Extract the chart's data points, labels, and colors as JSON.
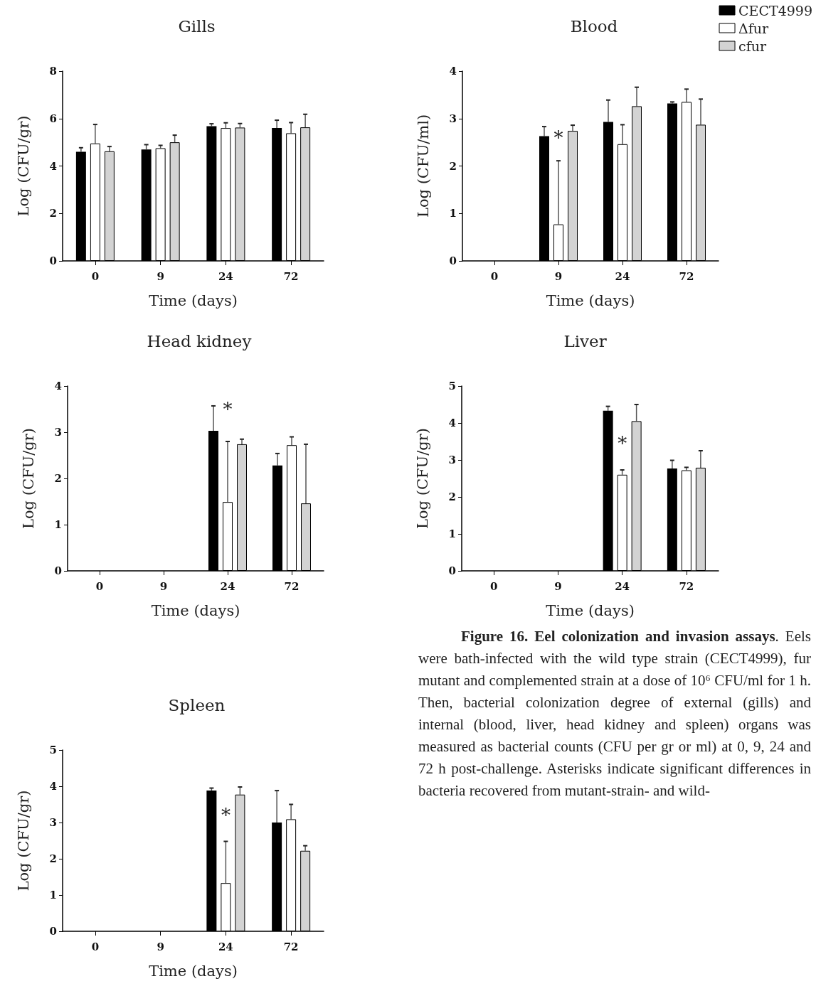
{
  "chart_data": [
    {
      "type": "bar",
      "title": "Gills",
      "xlabel": "Time (days)",
      "ylabel": "Log (CFU/gr)",
      "categories": [
        "0",
        "9",
        "24",
        "72"
      ],
      "ylim": [
        0,
        8
      ],
      "yticks": [
        0,
        2,
        4,
        6,
        8
      ],
      "grid": false,
      "legend": false,
      "series": [
        {
          "color": "#000000",
          "values": [
            4.6,
            4.7,
            5.68,
            5.6
          ],
          "errors": [
            [
              4.6,
              4.77
            ],
            [
              4.7,
              4.9
            ],
            [
              5.68,
              5.78
            ],
            [
              5.6,
              5.93
            ]
          ]
        },
        {
          "color": "#ffffff",
          "values": [
            4.95,
            4.75,
            5.6,
            5.38
          ],
          "errors": [
            [
              4.95,
              5.75
            ],
            [
              4.75,
              4.87
            ],
            [
              5.6,
              5.82
            ],
            [
              5.38,
              5.83
            ]
          ]
        },
        {
          "color": "#d3d3d3",
          "values": [
            4.62,
            5.0,
            5.62,
            5.63
          ],
          "errors": [
            [
              4.62,
              4.82
            ],
            [
              5.0,
              5.3
            ],
            [
              5.62,
              5.79
            ],
            [
              5.63,
              6.18
            ]
          ]
        }
      ]
    },
    {
      "type": "bar",
      "title": "Blood",
      "xlabel": "Time (days)",
      "ylabel": "Log (CFU/ml)",
      "categories": [
        "0",
        "9",
        "24",
        "72"
      ],
      "ylim": [
        0,
        4
      ],
      "yticks": [
        0,
        1,
        2,
        3,
        4
      ],
      "grid": false,
      "legend": "top right",
      "annotations": [
        "*"
      ],
      "series": [
        {
          "name": "CECT4999",
          "color": "#000000",
          "values": [
            null,
            2.63,
            2.93,
            3.32
          ],
          "errors": [
            null,
            [
              2.63,
              2.83
            ],
            [
              2.93,
              3.39
            ],
            [
              3.32,
              3.35
            ]
          ]
        },
        {
          "name": "Δfur",
          "color": "#ffffff",
          "values": [
            null,
            0.77,
            2.46,
            3.35
          ],
          "errors": [
            null,
            [
              0.77,
              2.11
            ],
            [
              2.46,
              2.87
            ],
            [
              3.35,
              3.62
            ]
          ]
        },
        {
          "name": "cfur",
          "color": "#d3d3d3",
          "values": [
            null,
            2.74,
            3.26,
            2.87
          ],
          "errors": [
            null,
            [
              2.74,
              2.86
            ],
            [
              3.26,
              3.66
            ],
            [
              2.87,
              3.41
            ]
          ]
        }
      ]
    },
    {
      "type": "bar",
      "title": "Head kidney",
      "xlabel": "Time (days)",
      "ylabel": "Log (CFU/gr)",
      "categories": [
        "0",
        "9",
        "24",
        "72"
      ],
      "ylim": [
        0,
        4
      ],
      "yticks": [
        0,
        1,
        2,
        3,
        4
      ],
      "grid": false,
      "legend": false,
      "annotations": [
        "*"
      ],
      "series": [
        {
          "color": "#000000",
          "values": [
            null,
            null,
            3.03,
            2.28
          ],
          "errors": [
            null,
            null,
            [
              3.03,
              3.57
            ],
            [
              2.28,
              2.54
            ]
          ]
        },
        {
          "color": "#ffffff",
          "values": [
            null,
            null,
            1.49,
            2.72
          ],
          "errors": [
            null,
            null,
            [
              1.49,
              2.8
            ],
            [
              2.72,
              2.9
            ]
          ]
        },
        {
          "color": "#d3d3d3",
          "values": [
            null,
            null,
            2.74,
            1.46
          ],
          "errors": [
            null,
            null,
            [
              2.74,
              2.85
            ],
            [
              1.46,
              2.74
            ]
          ]
        }
      ]
    },
    {
      "type": "bar",
      "title": "Liver",
      "xlabel": "Time (days)",
      "ylabel": "Log (CFU/gr)",
      "categories": [
        "0",
        "9",
        "24",
        "72"
      ],
      "ylim": [
        0,
        5
      ],
      "yticks": [
        0,
        1,
        2,
        3,
        4,
        5
      ],
      "grid": false,
      "legend": false,
      "annotations": [
        "*"
      ],
      "series": [
        {
          "color": "#000000",
          "values": [
            null,
            null,
            4.33,
            2.77
          ],
          "errors": [
            null,
            null,
            [
              4.33,
              4.45
            ],
            [
              2.77,
              2.99
            ]
          ]
        },
        {
          "color": "#ffffff",
          "values": [
            null,
            null,
            2.6,
            2.72
          ],
          "errors": [
            null,
            null,
            [
              2.6,
              2.73
            ],
            [
              2.72,
              2.8
            ]
          ]
        },
        {
          "color": "#d3d3d3",
          "values": [
            null,
            null,
            4.05,
            2.79
          ],
          "errors": [
            null,
            null,
            [
              4.05,
              4.5
            ],
            [
              2.79,
              3.25
            ]
          ]
        }
      ]
    },
    {
      "type": "bar",
      "title": "Spleen",
      "xlabel": "Time (days)",
      "ylabel": "Log (CFU/gr)",
      "categories": [
        "0",
        "9",
        "24",
        "72"
      ],
      "ylim": [
        0,
        5
      ],
      "yticks": [
        0,
        1,
        2,
        3,
        4,
        5
      ],
      "grid": false,
      "legend": false,
      "annotations": [
        "*"
      ],
      "series": [
        {
          "color": "#000000",
          "values": [
            null,
            null,
            3.88,
            3.0
          ],
          "errors": [
            null,
            null,
            [
              3.88,
              3.95
            ],
            [
              3.0,
              3.88
            ]
          ]
        },
        {
          "color": "#ffffff",
          "values": [
            null,
            null,
            1.33,
            3.09
          ],
          "errors": [
            null,
            null,
            [
              1.33,
              2.48
            ],
            [
              3.09,
              3.5
            ]
          ]
        },
        {
          "color": "#d3d3d3",
          "values": [
            null,
            null,
            3.77,
            2.22
          ],
          "errors": [
            null,
            null,
            [
              3.77,
              3.98
            ],
            [
              2.22,
              2.36
            ]
          ]
        }
      ]
    },
    {
      "type": "other",
      "title": "Figure 16. Eel colonization and invasion assays",
      "annotations": [
        ". Eels were bath-infected with the wild type strain (CECT4999), fur mutant and complemented strain at a dose of 10⁶ CFU/ml for 1 h. Then, bacterial colonization degree of external (gills) and internal (blood, liver, head kidney and spleen) organs was measured as bacterial counts (CFU per gr or ml) at 0, 9, 24 and 72 h post-challenge. Asterisks indicate significant differences in bacteria recovered from mutant-strain- and wild-"
      ]
    }
  ]
}
